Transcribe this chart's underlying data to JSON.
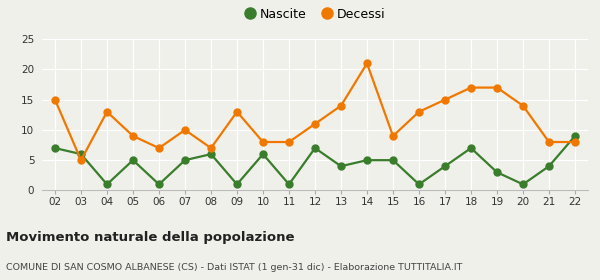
{
  "years": [
    2,
    3,
    4,
    5,
    6,
    7,
    8,
    9,
    10,
    11,
    12,
    13,
    14,
    15,
    16,
    17,
    18,
    19,
    20,
    21,
    22
  ],
  "nascite": [
    7,
    6,
    1,
    5,
    1,
    5,
    6,
    1,
    6,
    1,
    7,
    4,
    5,
    5,
    1,
    4,
    7,
    3,
    1,
    4,
    9
  ],
  "decessi": [
    15,
    5,
    13,
    9,
    7,
    10,
    7,
    13,
    8,
    8,
    11,
    14,
    21,
    9,
    13,
    15,
    17,
    17,
    14,
    8,
    8
  ],
  "nascite_color": "#3a7d2c",
  "decessi_color": "#f07800",
  "title": "Movimento naturale della popolazione",
  "subtitle": "COMUNE DI SAN COSMO ALBANESE (CS) - Dati ISTAT (1 gen-31 dic) - Elaborazione TUTTITALIA.IT",
  "legend_nascite": "Nascite",
  "legend_decessi": "Decessi",
  "ylim": [
    0,
    25
  ],
  "yticks": [
    0,
    5,
    10,
    15,
    20,
    25
  ],
  "bg_color": "#f0f0eb",
  "grid_color": "#ffffff",
  "marker_size": 5,
  "line_width": 1.6
}
